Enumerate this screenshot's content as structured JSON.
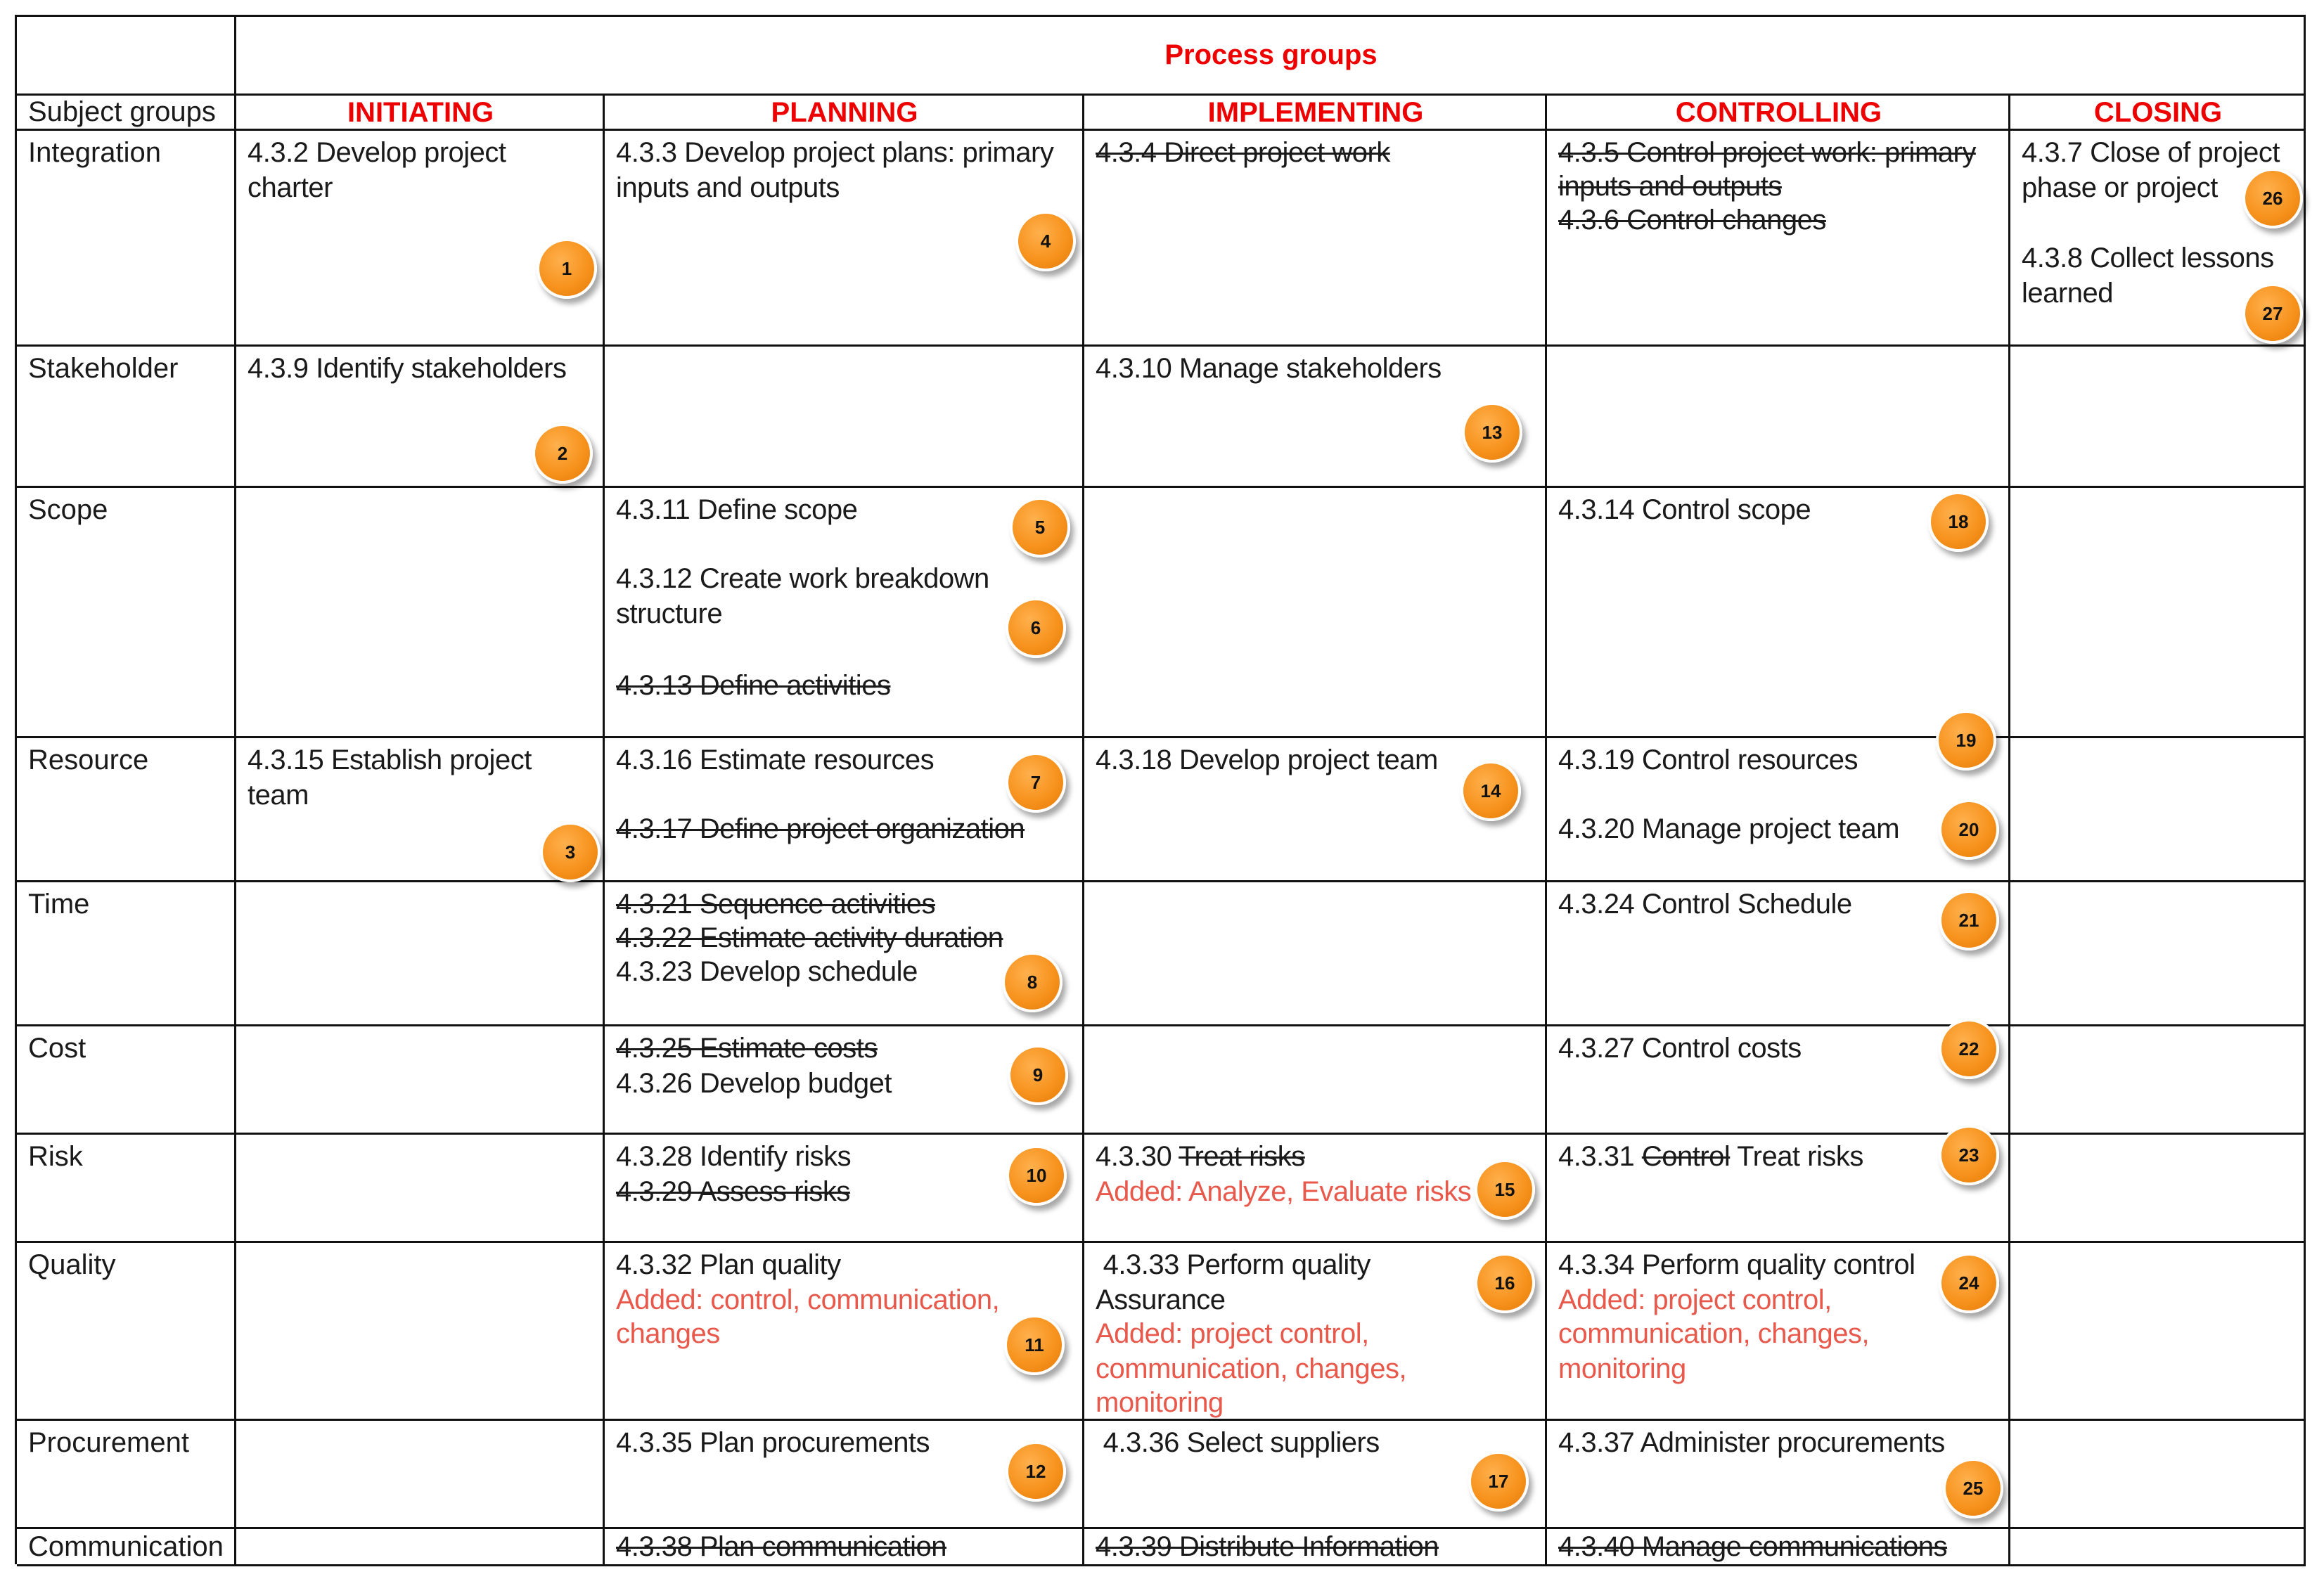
{
  "header": {
    "process_groups": "Process groups",
    "subject_groups": "Subject groups",
    "columns": [
      "INITIATING",
      "PLANNING",
      "IMPLEMENTING",
      "CONTROLLING",
      "CLOSING"
    ]
  },
  "rows": [
    {
      "label": "Integration",
      "initiating": [
        "4.3.2 Develop project",
        "charter"
      ],
      "planning": [
        "4.3.3 Develop project plans: primary",
        "inputs and outputs"
      ],
      "implementing": [
        "4.3.4 Direct project work"
      ],
      "controlling": [
        "4.3.5 Control project work: primary",
        "inputs and outputs",
        "4.3.6 Control changes"
      ],
      "closing": [
        "4.3.7 Close of project",
        "phase or project",
        "4.3.8 Collect lessons",
        "learned"
      ]
    },
    {
      "label": "Stakeholder",
      "initiating": [
        "4.3.9 Identify stakeholders"
      ],
      "implementing": [
        "4.3.10 Manage stakeholders"
      ]
    },
    {
      "label": "Scope",
      "planning": [
        "4.3.11 Define scope",
        "4.3.12 Create work breakdown",
        "structure",
        "4.3.13 Define activities"
      ],
      "controlling": [
        "4.3.14 Control scope"
      ]
    },
    {
      "label": "Resource",
      "initiating": [
        "4.3.15 Establish project",
        "team"
      ],
      "planning": [
        "4.3.16 Estimate resources",
        "4.3.17 Define project organization"
      ],
      "implementing": [
        "4.3.18 Develop project team"
      ],
      "controlling": [
        "4.3.19 Control resources",
        "4.3.20 Manage project team"
      ]
    },
    {
      "label": "Time",
      "planning": [
        "4.3.21 Sequence activities",
        "4.3.22 Estimate activity duration",
        "4.3.23 Develop schedule"
      ],
      "controlling": [
        "4.3.24 Control Schedule"
      ]
    },
    {
      "label": "Cost",
      "planning": [
        "4.3.25 Estimate costs",
        "4.3.26 Develop budget"
      ],
      "controlling": [
        "4.3.27 Control costs"
      ]
    },
    {
      "label": "Risk",
      "planning": [
        "4.3.28 Identify risks",
        "4.3.29 Assess risks"
      ],
      "implementing": [
        "4.3.30 ",
        "Treat risks",
        "Added: Analyze, Evaluate risks"
      ],
      "controlling": [
        "4.3.31 ",
        "Control",
        " Treat risks"
      ]
    },
    {
      "label": "Quality",
      "planning": [
        "4.3.32 Plan quality",
        "Added: control, communication,",
        "changes"
      ],
      "implementing": [
        " 4.3.33 Perform quality",
        "Assurance",
        "Added: project control,",
        "communication, changes,",
        "monitoring"
      ],
      "controlling": [
        "4.3.34 Perform quality control",
        "Added: project control,",
        "communication, changes,",
        "monitoring"
      ]
    },
    {
      "label": "Procurement",
      "planning": [
        "4.3.35 Plan procurements"
      ],
      "implementing": [
        " 4.3.36 Select suppliers"
      ],
      "controlling": [
        "4.3.37 Administer procurements"
      ]
    },
    {
      "label": "Communication",
      "planning": [
        "4.3.38 Plan communication"
      ],
      "implementing": [
        "4.3.39 Distribute Information"
      ],
      "controlling": [
        "4.3.40 Manage communications"
      ]
    }
  ],
  "badges": [
    "1",
    "2",
    "3",
    "4",
    "5",
    "6",
    "7",
    "8",
    "9",
    "10",
    "11",
    "12",
    "13",
    "14",
    "15",
    "16",
    "17",
    "18",
    "19",
    "20",
    "21",
    "22",
    "23",
    "24",
    "25",
    "26",
    "27"
  ],
  "colors": {
    "header_red": "#ee0000",
    "added_text": "#e8584b",
    "badge_orange": "#f7931e",
    "grid": "#111111"
  }
}
